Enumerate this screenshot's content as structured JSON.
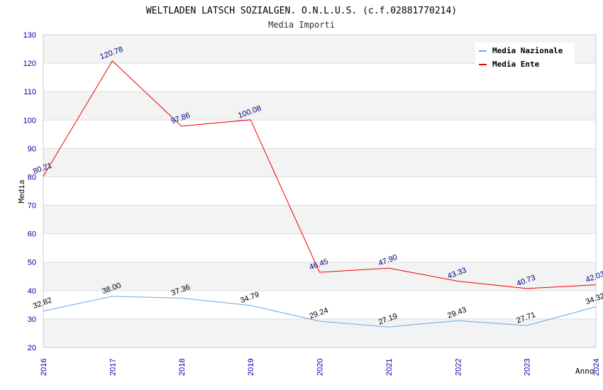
{
  "chart_data": {
    "type": "line",
    "title": "WELTLADEN LATSCH SOZIALGEN. O.N.L.U.S. (c.f.02881770214)",
    "subtitle": "Media Importi",
    "xlabel": "Anno",
    "ylabel": "Media",
    "x": [
      "2016",
      "2017",
      "2018",
      "2019",
      "2020",
      "2021",
      "2022",
      "2023",
      "2024"
    ],
    "ylim": [
      20,
      130
    ],
    "yticks": [
      20,
      30,
      40,
      50,
      60,
      70,
      80,
      90,
      100,
      110,
      120,
      130
    ],
    "grid": true,
    "legend_position": "top-right",
    "series": [
      {
        "name": "Media Nazionale",
        "color": "#6aa9e6",
        "label_color": "#000000",
        "values": [
          32.82,
          38.0,
          37.36,
          34.79,
          29.24,
          27.19,
          29.43,
          27.71,
          34.32
        ],
        "labels": [
          "32.82",
          "38.00",
          "37.36",
          "34.79",
          "29.24",
          "27.19",
          "29.43",
          "27.71",
          "34.32"
        ]
      },
      {
        "name": "Media Ente",
        "color": "#ee0000",
        "label_color": "#000080",
        "values": [
          80.21,
          120.78,
          97.86,
          100.08,
          46.45,
          47.9,
          43.33,
          40.73,
          42.03
        ],
        "labels": [
          "80.21",
          "120.78",
          "97.86",
          "100.08",
          "46.45",
          "47.90",
          "43.33",
          "40.73",
          "42.03"
        ]
      }
    ]
  }
}
